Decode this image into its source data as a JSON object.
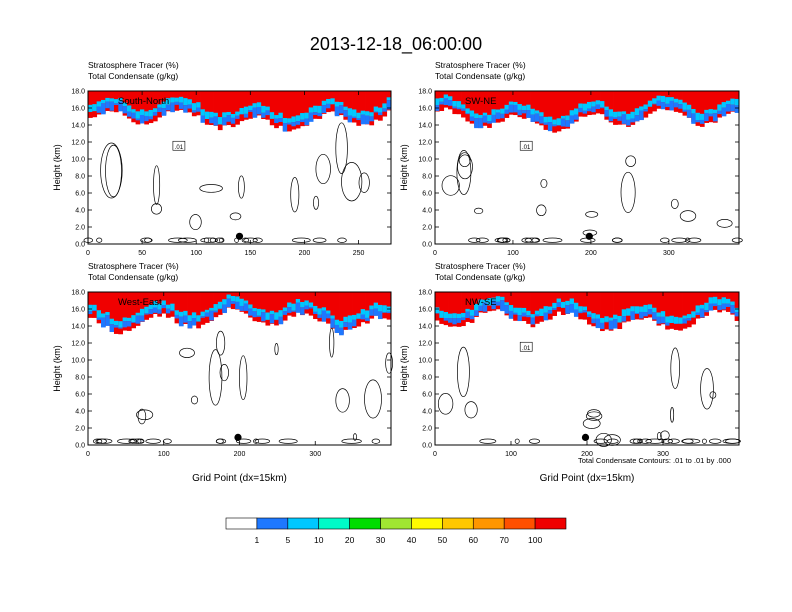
{
  "figure": {
    "title": "2013-12-18_06:00:00",
    "contour_note": "Total Condensate Contours: .01 to .01 by .000"
  },
  "colorbar": {
    "levels": [
      "1",
      "5",
      "10",
      "20",
      "30",
      "40",
      "50",
      "60",
      "70",
      "100"
    ],
    "colors": [
      "#ffffff",
      "#1e78ff",
      "#00c8ff",
      "#00fac8",
      "#00dc00",
      "#a0e632",
      "#fffa00",
      "#ffc800",
      "#ff9600",
      "#ff5000",
      "#f00000"
    ]
  },
  "chart_data": [
    {
      "type": "heatmap",
      "subtitle_line1": "Stratosphere Tracer   (%)",
      "subtitle_line2": "Total Condensate   (g/kg)",
      "label": "South-North",
      "ylabel": "Height (km)",
      "xlabel": "",
      "xlim": [
        0,
        280
      ],
      "ylim": [
        0,
        18
      ],
      "xticks": [
        "0",
        "50",
        "100",
        "150",
        "200",
        "250"
      ],
      "yticks": [
        "0.0",
        "2.0",
        "4.0",
        "6.0",
        "8.0",
        "10.0",
        "12.0",
        "14.0",
        "16.0",
        "18.0"
      ],
      "contour_label": ".01",
      "marker_x": 140
    },
    {
      "type": "heatmap",
      "subtitle_line1": "Stratosphere Tracer   (%)",
      "subtitle_line2": "Total Condensate   (g/kg)",
      "label": "SW-NE",
      "ylabel": "Height (km)",
      "xlabel": "",
      "xlim": [
        0,
        390
      ],
      "ylim": [
        0,
        18
      ],
      "xticks": [
        "0",
        "100",
        "200",
        "300"
      ],
      "yticks": [
        "0.0",
        "2.0",
        "4.0",
        "6.0",
        "8.0",
        "10.0",
        "12.0",
        "14.0",
        "16.0",
        "18.0"
      ],
      "contour_label": ".01",
      "marker_x": 198
    },
    {
      "type": "heatmap",
      "subtitle_line1": "Stratosphere Tracer   (%)",
      "subtitle_line2": "Total Condensate   (g/kg)",
      "label": "West-East",
      "ylabel": "Height (km)",
      "xlabel": "Grid Point (dx=15km)",
      "xlim": [
        0,
        400
      ],
      "ylim": [
        0,
        18
      ],
      "xticks": [
        "0",
        "100",
        "200",
        "300"
      ],
      "yticks": [
        "0.0",
        "2.0",
        "4.0",
        "6.0",
        "8.0",
        "10.0",
        "12.0",
        "14.0",
        "16.0",
        "18.0"
      ],
      "contour_label": "",
      "marker_x": 198
    },
    {
      "type": "heatmap",
      "subtitle_line1": "Stratosphere Tracer   (%)",
      "subtitle_line2": "Total Condensate   (g/kg)",
      "label": "NW-SE",
      "ylabel": "Height (km)",
      "xlabel": "Grid Point (dx=15km)",
      "xlim": [
        0,
        400
      ],
      "ylim": [
        0,
        18
      ],
      "xticks": [
        "0",
        "100",
        "200",
        "300"
      ],
      "yticks": [
        "0.0",
        "2.0",
        "4.0",
        "6.0",
        "8.0",
        "10.0",
        "12.0",
        "14.0",
        "16.0",
        "18.0"
      ],
      "contour_label": ".01",
      "marker_x": 198
    }
  ]
}
